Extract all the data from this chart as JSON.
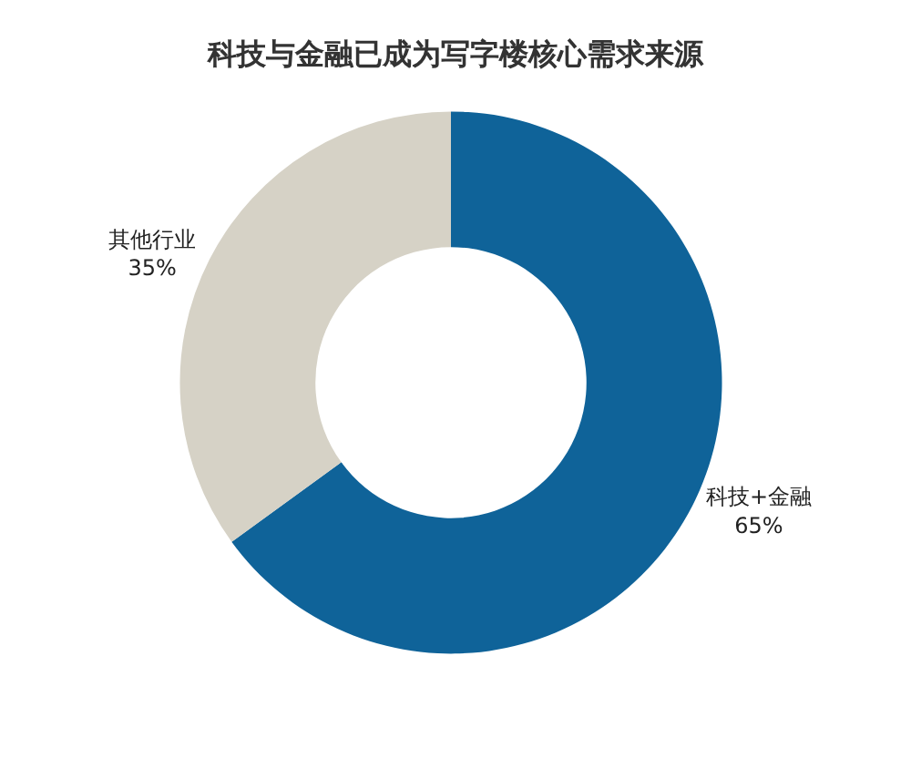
{
  "chart_data": {
    "type": "donut",
    "title": "科技与金融已成为写字楼核心需求来源",
    "categories": [
      "科技+金融",
      "其他行业"
    ],
    "values": [
      65,
      35
    ],
    "value_labels": [
      "65%",
      "35%"
    ],
    "colors": [
      "#0f6399",
      "#d6d2c6"
    ],
    "legend": false
  }
}
